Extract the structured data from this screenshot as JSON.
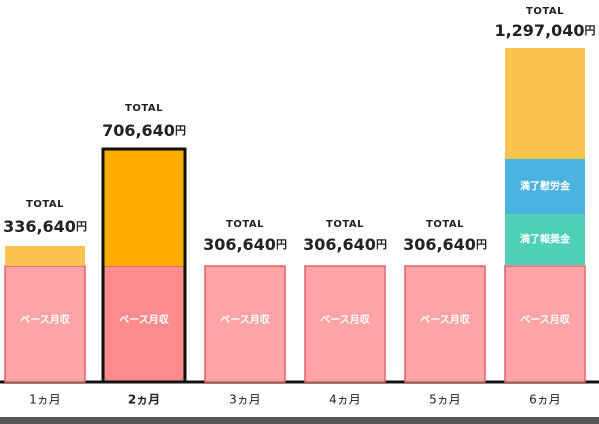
{
  "columns": [
    {
      "label": "1ヵ月",
      "caption": "TOTAL",
      "total": "336,640",
      "unit": "円",
      "segments": [
        "ベース月収"
      ]
    },
    {
      "label": "2ヵ月",
      "caption": "TOTAL",
      "total": "706,640",
      "unit": "円",
      "segments": [
        "ベース月収"
      ]
    },
    {
      "label": "3ヵ月",
      "caption": "TOTAL",
      "total": "306,640",
      "unit": "円",
      "segments": [
        "ベース月収"
      ]
    },
    {
      "label": "4ヵ月",
      "caption": "TOTAL",
      "total": "306,640",
      "unit": "円",
      "segments": [
        "ベース月収"
      ]
    },
    {
      "label": "5ヵ月",
      "caption": "TOTAL",
      "total": "306,640",
      "unit": "円",
      "segments": [
        "ベース月収"
      ]
    },
    {
      "label": "6ヵ月",
      "caption": "TOTAL",
      "total": "1,297,040",
      "unit": "円",
      "segments": [
        "ベース月収",
        "満了報奨金",
        "満了慰労金"
      ]
    }
  ]
}
